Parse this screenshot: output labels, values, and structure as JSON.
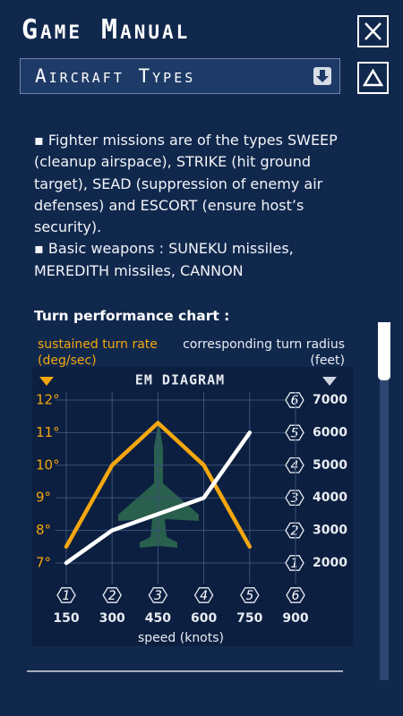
{
  "header": {
    "title": "Game Manual"
  },
  "dropdown": {
    "selected": "Aircraft Types"
  },
  "body": {
    "paragraphs": [
      "▪ Fighter missions are of the types SWEEP (cleanup airspace), STRIKE (hit ground target), SEAD (suppression of enemy air defenses) and ESCORT (ensure host’s security).",
      "▪ Basic weapons : SUNEKU missiles, MEREDITH missiles, CANNON"
    ]
  },
  "chart_heading": "Turn performance chart :",
  "chart_data": {
    "type": "line",
    "title": "EM DIAGRAM",
    "x_label": "speed (knots)",
    "x": [
      150,
      300,
      450,
      600,
      750
    ],
    "xlim": [
      150,
      900
    ],
    "xticks": [
      150,
      300,
      450,
      600,
      750,
      900
    ],
    "x_index_labels": [
      "1",
      "2",
      "3",
      "4",
      "5",
      "6"
    ],
    "ylim": [
      7,
      12
    ],
    "yticks": [
      {
        "value": 7,
        "label": "7°"
      },
      {
        "value": 8,
        "label": "8°"
      },
      {
        "value": 9,
        "label": "9°"
      },
      {
        "value": 10,
        "label": "10°"
      },
      {
        "value": 11,
        "label": "11°"
      },
      {
        "value": 12,
        "label": "12°"
      }
    ],
    "y_unit": "(deg/sec)",
    "y2lim": [
      2000,
      7000
    ],
    "y2ticks": [
      2000,
      3000,
      4000,
      5000,
      6000,
      7000
    ],
    "y2_index_labels": [
      "1",
      "2",
      "3",
      "4",
      "5",
      "6"
    ],
    "y2_unit": "(feet)",
    "grid": true,
    "series": [
      {
        "name": "sustained turn rate",
        "color": "#f5a70e",
        "values": [
          7.5,
          10,
          11.3,
          10,
          7.5
        ]
      },
      {
        "name": "corresponding turn radius",
        "color": "#ffffff",
        "axis": "y2",
        "values": [
          2000,
          3000,
          3500,
          4000,
          6000
        ]
      }
    ]
  }
}
